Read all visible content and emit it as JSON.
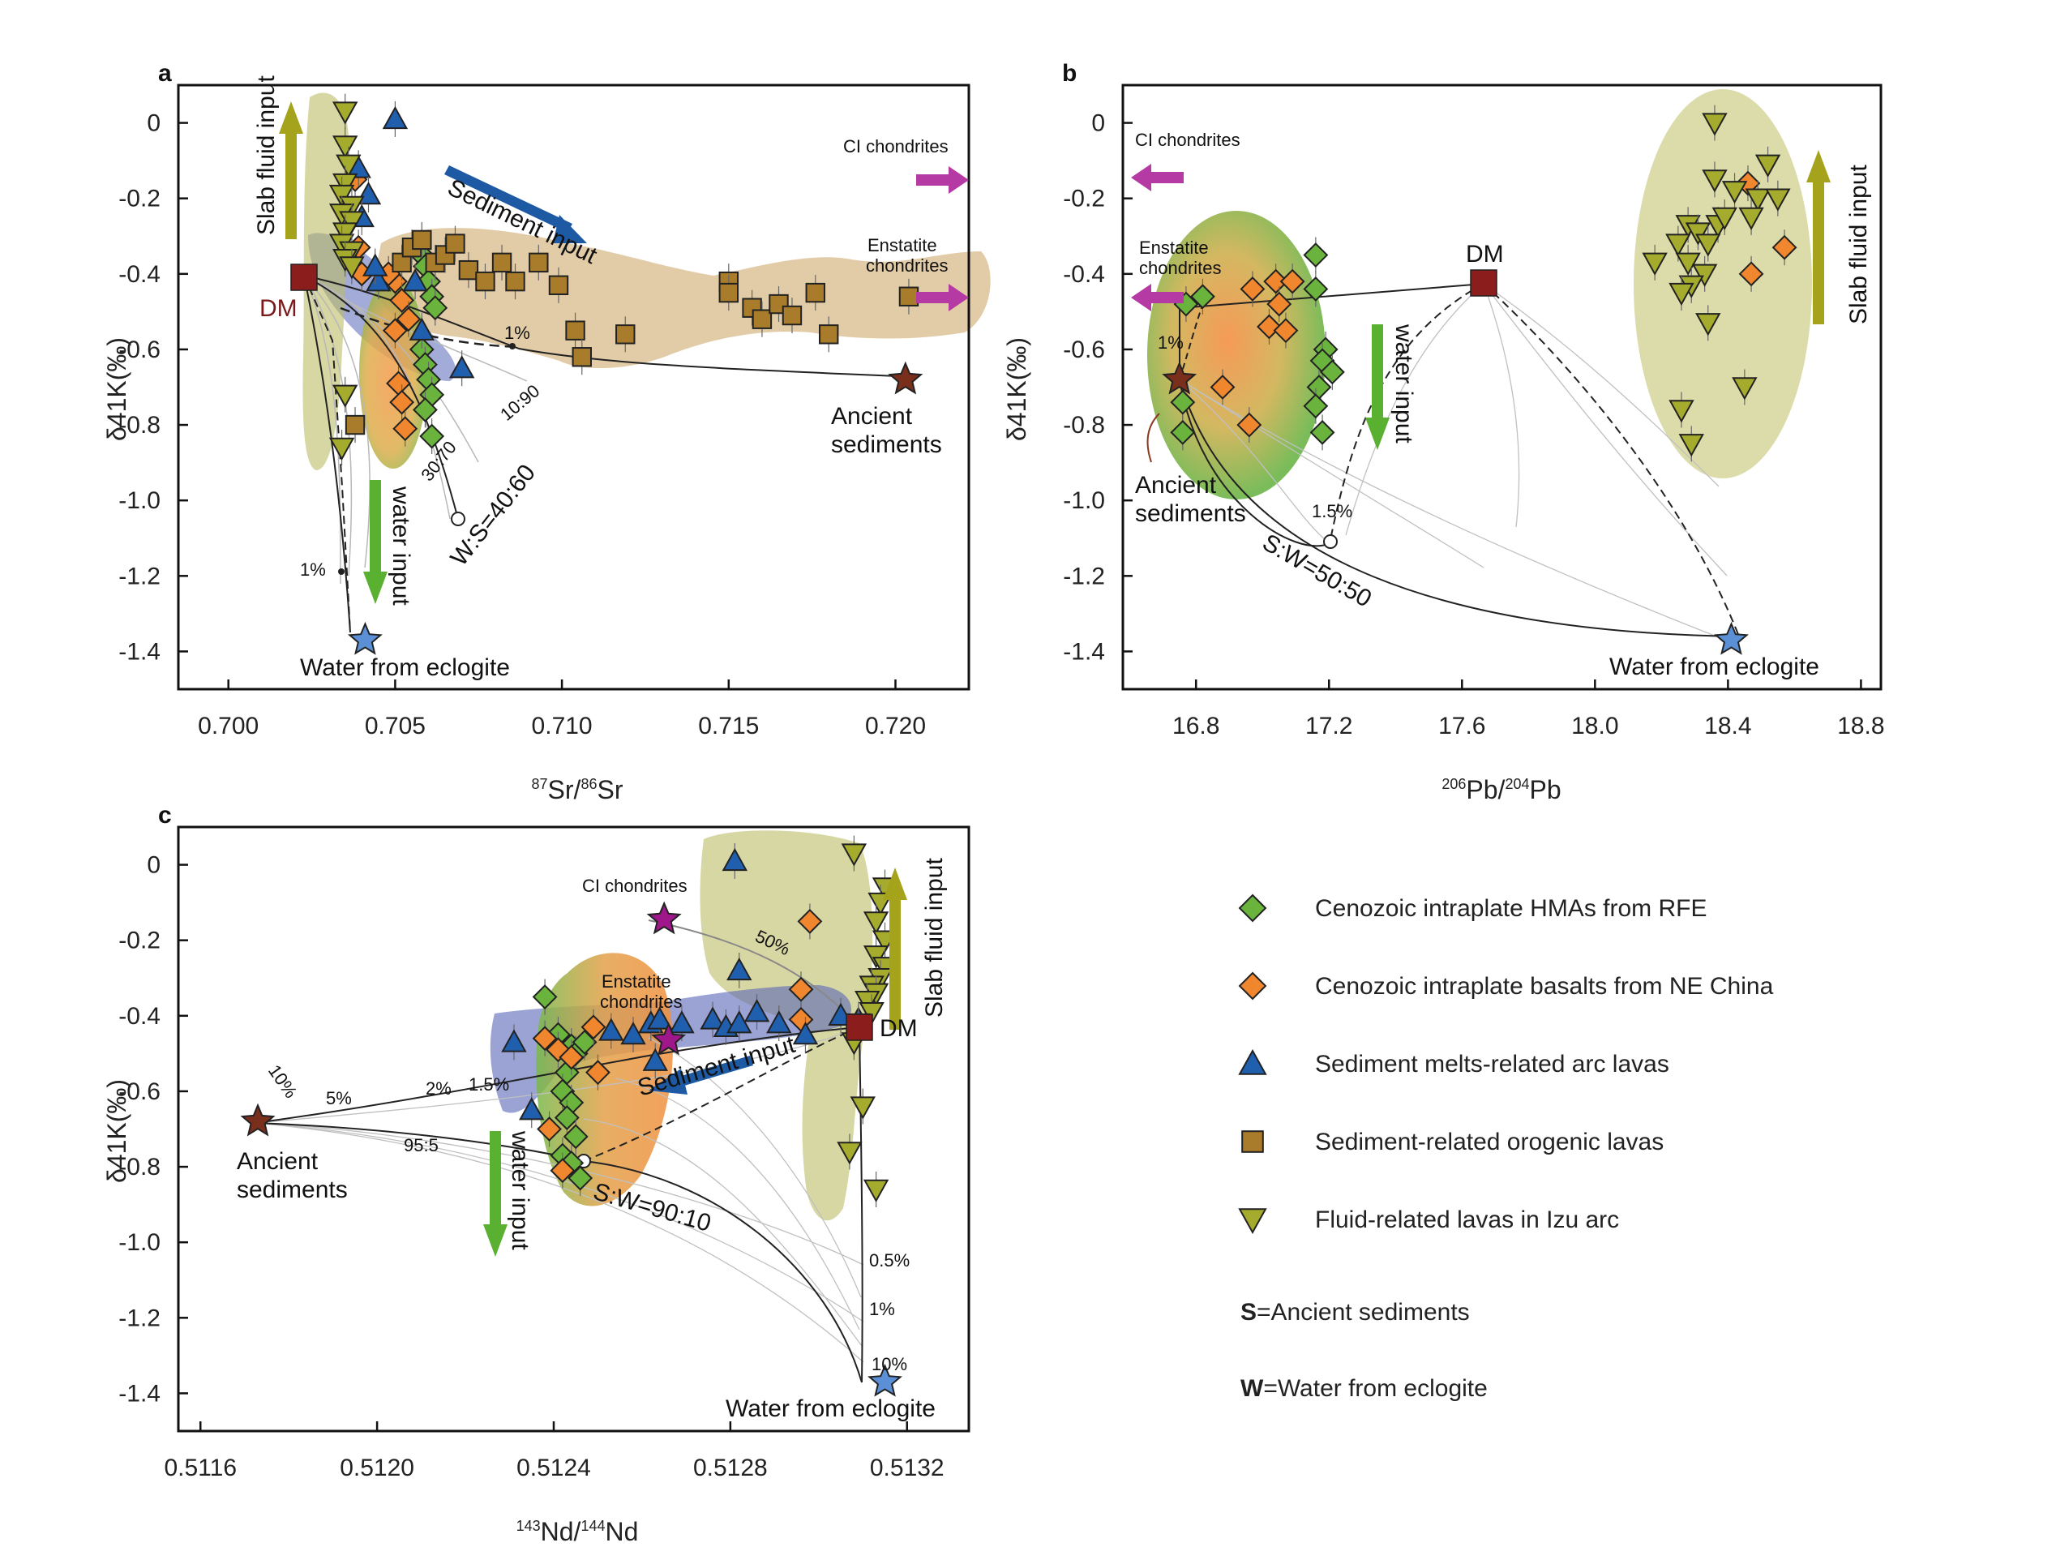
{
  "panels": [
    {
      "letter": "a",
      "xlabel_sup1": "87",
      "xlabel_mid": "Sr/",
      "xlabel_sup2": "86",
      "xlabel_end": "Sr",
      "ylabel": "δ41K(‰)",
      "xticks": [
        "0.700",
        "0.705",
        "0.710",
        "0.715",
        "0.720"
      ],
      "yticks": [
        "0",
        "-0.2",
        "-0.4",
        "-0.6",
        "-0.8",
        "-1.0",
        "-1.2",
        "-1.4"
      ],
      "annotations": {
        "slab": "Slab fluid input",
        "sediment": "Sediment input",
        "water": "water input",
        "dm": "DM",
        "ci": "CI chondrites",
        "enst1": "Enstatite",
        "enst2": "chondrites",
        "anc1": "Ancient",
        "anc2": "sediments",
        "water_ecl": "Water from eclogite",
        "ws": "W:S=40:60",
        "r3070": "30:70",
        "r1090": "10:90",
        "pct1a": "1%",
        "pct1b": "1%"
      }
    },
    {
      "letter": "b",
      "xlabel_sup1": "206",
      "xlabel_mid": "Pb/",
      "xlabel_sup2": "204",
      "xlabel_end": "Pb",
      "ylabel": "δ41K(‰)",
      "xticks": [
        "16.8",
        "17.2",
        "17.6",
        "18.0",
        "18.4",
        "18.8"
      ],
      "yticks": [
        "0",
        "-0.2",
        "-0.4",
        "-0.6",
        "-0.8",
        "-1.0",
        "-1.2",
        "-1.4"
      ],
      "annotations": {
        "slab": "Slab fluid input",
        "water": "water input",
        "dm": "DM",
        "ci": "CI chondrites",
        "enst1": "Enstatite",
        "enst2": "chondrites",
        "anc1": "Ancient",
        "anc2": "sediments",
        "water_ecl": "Water from eclogite",
        "sw": "S:W=50:50",
        "pct1": "1%",
        "pct15": "1.5%"
      }
    },
    {
      "letter": "c",
      "xlabel_sup1": "143",
      "xlabel_mid": "Nd/",
      "xlabel_sup2": "144",
      "xlabel_end": "Nd",
      "ylabel": "δ41K(‰)",
      "xticks": [
        "0.5116",
        "0.5120",
        "0.5124",
        "0.5128",
        "0.5132"
      ],
      "yticks": [
        "0",
        "-0.2",
        "-0.4",
        "-0.6",
        "-0.8",
        "-1.0",
        "-1.2",
        "-1.4"
      ],
      "annotations": {
        "slab": "Slab fluid input",
        "sediment": "Sediment input",
        "water": "water input",
        "dm": "DM",
        "ci": "CI chondrites",
        "enst1": "Enstatite",
        "enst2": "chondrites",
        "anc1": "Ancient",
        "anc2": "sediments",
        "water_ecl": "Water from eclogite",
        "sw": "S:W=90:10",
        "r955": "95:5",
        "p10": "10%",
        "p5": "5%",
        "p2": "2%",
        "p15": "1.5%",
        "p50": "50%",
        "p05": "0.5%",
        "p1": "1%",
        "p10b": "10%"
      }
    }
  ],
  "legend": {
    "items": [
      {
        "label": "Cenozoic intraplate HMAs from RFE",
        "marker": "diamond",
        "color": "#6ab43e"
      },
      {
        "label": "Cenozoic intraplate basalts from NE China",
        "marker": "diamond",
        "color": "#f0862e"
      },
      {
        "label": "Sediment melts-related arc lavas",
        "marker": "triangle-up",
        "color": "#1f5fae"
      },
      {
        "label": "Sediment-related orogenic lavas",
        "marker": "square",
        "color": "#a87c2a"
      },
      {
        "label": "Fluid-related lavas in Izu arc",
        "marker": "triangle-down",
        "color": "#a5ab2c"
      }
    ],
    "s_bold": "S",
    "s_rest": "=Ancient sediments",
    "w_bold": "W",
    "w_rest": "=Water from eclogite"
  },
  "chart_data": [
    {
      "type": "scatter",
      "panel": "a",
      "xlabel": "87Sr/86Sr",
      "ylabel": "δ41K(‰)",
      "xlim": [
        0.6985,
        0.7222
      ],
      "ylim": [
        -1.5,
        0.1
      ],
      "endmembers": {
        "DM": [
          0.7027,
          -0.42
        ],
        "Ancient sediments": [
          0.7203,
          -0.68
        ],
        "Water from eclogite": [
          0.7041,
          -1.37
        ]
      },
      "series": [
        {
          "name": "Cenozoic intraplate HMAs from RFE",
          "points": [
            [
              0.7058,
              -0.35
            ],
            [
              0.7059,
              -0.38
            ],
            [
              0.706,
              -0.42
            ],
            [
              0.7061,
              -0.46
            ],
            [
              0.7062,
              -0.49
            ],
            [
              0.7058,
              -0.6
            ],
            [
              0.7059,
              -0.64
            ],
            [
              0.706,
              -0.68
            ],
            [
              0.7061,
              -0.72
            ],
            [
              0.7059,
              -0.76
            ],
            [
              0.7061,
              -0.83
            ]
          ]
        },
        {
          "name": "Cenozoic intraplate basalts from NE China",
          "points": [
            [
              0.7038,
              -0.15
            ],
            [
              0.7039,
              -0.33
            ],
            [
              0.704,
              -0.4
            ],
            [
              0.705,
              -0.42
            ],
            [
              0.7052,
              -0.47
            ],
            [
              0.7054,
              -0.52
            ],
            [
              0.705,
              -0.55
            ],
            [
              0.7051,
              -0.69
            ],
            [
              0.7052,
              -0.74
            ],
            [
              0.7053,
              -0.81
            ],
            [
              0.7048,
              -0.4
            ]
          ]
        },
        {
          "name": "Sediment melts-related arc lavas",
          "points": [
            [
              0.705,
              0.01
            ],
            [
              0.7039,
              -0.12
            ],
            [
              0.7042,
              -0.19
            ],
            [
              0.704,
              -0.25
            ],
            [
              0.7045,
              -0.42
            ],
            [
              0.7056,
              -0.42
            ],
            [
              0.7058,
              -0.55
            ],
            [
              0.707,
              -0.65
            ],
            [
              0.7044,
              -0.38
            ]
          ]
        },
        {
          "name": "Sediment-related orogenic lavas",
          "points": [
            [
              0.7052,
              -0.37
            ],
            [
              0.7055,
              -0.33
            ],
            [
              0.7058,
              -0.31
            ],
            [
              0.7062,
              -0.37
            ],
            [
              0.7065,
              -0.35
            ],
            [
              0.7068,
              -0.32
            ],
            [
              0.7072,
              -0.39
            ],
            [
              0.7077,
              -0.42
            ],
            [
              0.7082,
              -0.37
            ],
            [
              0.7086,
              -0.42
            ],
            [
              0.7093,
              -0.37
            ],
            [
              0.7099,
              -0.43
            ],
            [
              0.7104,
              -0.55
            ],
            [
              0.7106,
              -0.62
            ],
            [
              0.7119,
              -0.56
            ],
            [
              0.715,
              -0.42
            ],
            [
              0.715,
              -0.45
            ],
            [
              0.7157,
              -0.49
            ],
            [
              0.716,
              -0.52
            ],
            [
              0.7165,
              -0.48
            ],
            [
              0.7169,
              -0.51
            ],
            [
              0.7176,
              -0.45
            ],
            [
              0.718,
              -0.56
            ],
            [
              0.7204,
              -0.46
            ],
            [
              0.7038,
              -0.8
            ]
          ]
        },
        {
          "name": "Fluid-related lavas in Izu arc",
          "points": [
            [
              0.7035,
              0.03
            ],
            [
              0.7035,
              -0.06
            ],
            [
              0.7036,
              -0.11
            ],
            [
              0.7035,
              -0.16
            ],
            [
              0.7034,
              -0.19
            ],
            [
              0.7037,
              -0.22
            ],
            [
              0.7034,
              -0.24
            ],
            [
              0.7037,
              -0.26
            ],
            [
              0.7035,
              -0.29
            ],
            [
              0.7034,
              -0.32
            ],
            [
              0.7037,
              -0.34
            ],
            [
              0.7035,
              -0.36
            ],
            [
              0.7037,
              -0.38
            ],
            [
              0.7035,
              -0.72
            ],
            [
              0.7034,
              -0.86
            ]
          ]
        }
      ]
    },
    {
      "type": "scatter",
      "panel": "b",
      "xlabel": "206Pb/204Pb",
      "ylabel": "δ41K(‰)",
      "xlim": [
        16.58,
        18.86
      ],
      "ylim": [
        -1.5,
        0.1
      ],
      "endmembers": {
        "DM": [
          17.66,
          -0.42
        ],
        "Ancient sediments": [
          16.75,
          -0.68
        ],
        "Water from eclogite": [
          18.41,
          -1.37
        ]
      },
      "series": [
        {
          "name": "Cenozoic intraplate HMAs from RFE",
          "points": [
            [
              16.77,
              -0.48
            ],
            [
              16.82,
              -0.46
            ],
            [
              17.16,
              -0.35
            ],
            [
              17.16,
              -0.44
            ],
            [
              17.19,
              -0.6
            ],
            [
              17.18,
              -0.63
            ],
            [
              17.21,
              -0.66
            ],
            [
              17.17,
              -0.7
            ],
            [
              17.16,
              -0.75
            ],
            [
              17.18,
              -0.82
            ],
            [
              16.76,
              -0.74
            ],
            [
              16.76,
              -0.82
            ]
          ]
        },
        {
          "name": "Cenozoic intraplate basalts from NE China",
          "points": [
            [
              16.97,
              -0.44
            ],
            [
              17.04,
              -0.42
            ],
            [
              17.09,
              -0.42
            ],
            [
              17.05,
              -0.48
            ],
            [
              17.02,
              -0.54
            ],
            [
              17.07,
              -0.55
            ],
            [
              16.88,
              -0.7
            ],
            [
              16.96,
              -0.8
            ],
            [
              18.46,
              -0.16
            ],
            [
              18.47,
              -0.4
            ],
            [
              18.57,
              -0.33
            ]
          ]
        },
        {
          "name": "Fluid-related lavas in Izu arc",
          "points": [
            [
              18.36,
              0.0
            ],
            [
              18.52,
              -0.11
            ],
            [
              18.36,
              -0.15
            ],
            [
              18.42,
              -0.18
            ],
            [
              18.49,
              -0.2
            ],
            [
              18.55,
              -0.2
            ],
            [
              18.47,
              -0.25
            ],
            [
              18.37,
              -0.27
            ],
            [
              18.28,
              -0.27
            ],
            [
              18.31,
              -0.29
            ],
            [
              18.25,
              -0.32
            ],
            [
              18.34,
              -0.32
            ],
            [
              18.39,
              -0.25
            ],
            [
              18.28,
              -0.37
            ],
            [
              18.18,
              -0.37
            ],
            [
              18.33,
              -0.4
            ],
            [
              18.29,
              -0.43
            ],
            [
              18.26,
              -0.45
            ],
            [
              18.34,
              -0.53
            ],
            [
              18.45,
              -0.7
            ],
            [
              18.26,
              -0.76
            ],
            [
              18.29,
              -0.85
            ]
          ]
        }
      ]
    },
    {
      "type": "scatter",
      "panel": "c",
      "xlabel": "143Nd/144Nd",
      "ylabel": "δ41K(‰)",
      "xlim": [
        0.51155,
        0.51334
      ],
      "ylim": [
        -1.5,
        0.1
      ],
      "endmembers": {
        "DM": [
          0.51314,
          -0.42
        ],
        "Ancient sediments": [
          0.51173,
          -0.68
        ],
        "Water from eclogite": [
          0.51315,
          -1.37
        ],
        "CI chondrites": [
          0.51265,
          -0.145
        ],
        "Enstatite chondrites": [
          0.51266,
          -0.465
        ]
      },
      "series": [
        {
          "name": "Cenozoic intraplate HMAs from RFE",
          "points": [
            [
              0.51238,
              -0.35
            ],
            [
              0.51241,
              -0.45
            ],
            [
              0.51244,
              -0.48
            ],
            [
              0.51245,
              -0.5
            ],
            [
              0.51247,
              -0.47
            ],
            [
              0.51243,
              -0.55
            ],
            [
              0.51242,
              -0.6
            ],
            [
              0.51244,
              -0.63
            ],
            [
              0.51243,
              -0.67
            ],
            [
              0.51245,
              -0.72
            ],
            [
              0.51242,
              -0.77
            ],
            [
              0.51244,
              -0.79
            ],
            [
              0.51246,
              -0.83
            ]
          ]
        },
        {
          "name": "Cenozoic intraplate basalts from NE China",
          "points": [
            [
              0.51238,
              -0.46
            ],
            [
              0.51249,
              -0.43
            ],
            [
              0.51241,
              -0.49
            ],
            [
              0.51244,
              -0.51
            ],
            [
              0.5125,
              -0.55
            ],
            [
              0.51239,
              -0.7
            ],
            [
              0.51242,
              -0.81
            ],
            [
              0.51298,
              -0.15
            ],
            [
              0.51296,
              -0.33
            ],
            [
              0.51296,
              -0.41
            ]
          ]
        },
        {
          "name": "Sediment melts-related arc lavas",
          "points": [
            [
              0.51281,
              0.01
            ],
            [
              0.51282,
              -0.28
            ],
            [
              0.51231,
              -0.47
            ],
            [
              0.51253,
              -0.44
            ],
            [
              0.51258,
              -0.45
            ],
            [
              0.51262,
              -0.42
            ],
            [
              0.51264,
              -0.41
            ],
            [
              0.51269,
              -0.42
            ],
            [
              0.51276,
              -0.41
            ],
            [
              0.51279,
              -0.43
            ],
            [
              0.51282,
              -0.42
            ],
            [
              0.51286,
              -0.39
            ],
            [
              0.51291,
              -0.42
            ],
            [
              0.51297,
              -0.45
            ],
            [
              0.51305,
              -0.4
            ],
            [
              0.51309,
              -0.41
            ],
            [
              0.51235,
              -0.65
            ],
            [
              0.51263,
              -0.52
            ]
          ]
        },
        {
          "name": "Fluid-related lavas in Izu arc",
          "points": [
            [
              0.51308,
              0.03
            ],
            [
              0.51315,
              -0.06
            ],
            [
              0.51314,
              -0.1
            ],
            [
              0.51313,
              -0.15
            ],
            [
              0.51315,
              -0.2
            ],
            [
              0.51313,
              -0.24
            ],
            [
              0.51315,
              -0.27
            ],
            [
              0.51314,
              -0.3
            ],
            [
              0.51312,
              -0.32
            ],
            [
              0.51313,
              -0.34
            ],
            [
              0.51311,
              -0.36
            ],
            [
              0.51312,
              -0.39
            ],
            [
              0.51309,
              -0.42
            ],
            [
              0.51308,
              -0.47
            ],
            [
              0.5131,
              -0.64
            ],
            [
              0.51307,
              -0.76
            ],
            [
              0.51313,
              -0.86
            ]
          ]
        }
      ]
    }
  ]
}
